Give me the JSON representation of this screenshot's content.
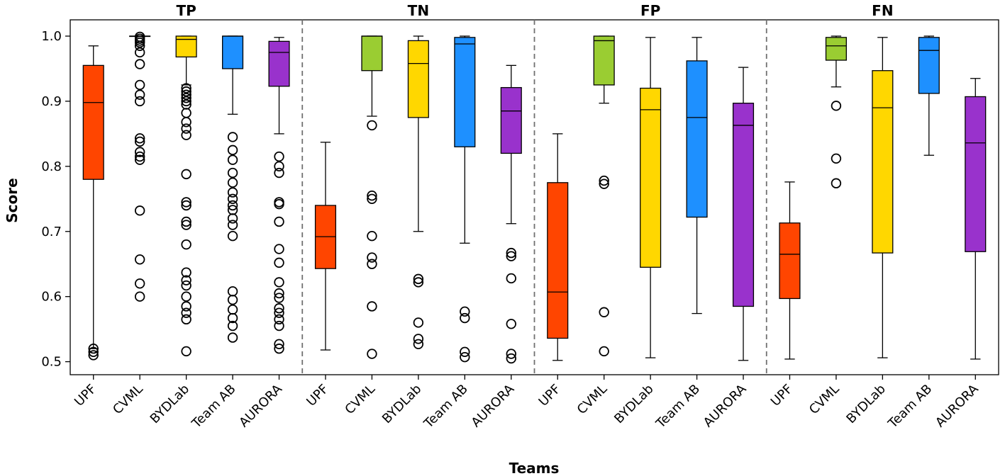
{
  "chart_data": {
    "type": "boxplot",
    "xlabel": "Teams",
    "ylabel": "Score",
    "ylim": [
      0.48,
      1.025
    ],
    "yticks": [
      "0.5",
      "0.6",
      "0.7",
      "0.8",
      "0.9",
      "1.0"
    ],
    "categories": [
      "UPF",
      "CVML",
      "BYDLab",
      "Team AB",
      "AURORA"
    ],
    "team_colors": [
      "#FF4500",
      "#9ACD32",
      "#FFD700",
      "#1E90FF",
      "#9932CC"
    ],
    "panels": [
      {
        "title": "TP",
        "boxes": [
          {
            "team": "UPF",
            "whisker_low": 0.52,
            "q1": 0.78,
            "median": 0.898,
            "q3": 0.955,
            "whisker_high": 0.985,
            "outliers": [
              0.51,
              0.515,
              0.52
            ]
          },
          {
            "team": "CVML",
            "whisker_low": 1.0,
            "q1": 1.0,
            "median": 1.0,
            "q3": 1.0,
            "whisker_high": 1.0,
            "outliers": [
              0.6,
              0.62,
              0.657,
              0.732,
              0.81,
              0.815,
              0.822,
              0.838,
              0.843,
              0.9,
              0.91,
              0.925,
              0.957,
              0.975,
              0.985,
              0.99,
              0.993,
              0.996,
              0.999
            ]
          },
          {
            "team": "BYDLab",
            "whisker_low": 0.925,
            "q1": 0.968,
            "median": 0.995,
            "q3": 1.0,
            "whisker_high": 1.0,
            "outliers": [
              0.516,
              0.565,
              0.575,
              0.585,
              0.6,
              0.617,
              0.625,
              0.637,
              0.68,
              0.71,
              0.715,
              0.74,
              0.745,
              0.788,
              0.848,
              0.858,
              0.868,
              0.882,
              0.895,
              0.9,
              0.905,
              0.91,
              0.915,
              0.92
            ]
          },
          {
            "team": "Team AB",
            "whisker_low": 0.88,
            "q1": 0.95,
            "median": 1.0,
            "q3": 1.0,
            "whisker_high": 1.0,
            "outliers": [
              0.537,
              0.555,
              0.567,
              0.58,
              0.595,
              0.608,
              0.693,
              0.71,
              0.72,
              0.733,
              0.74,
              0.75,
              0.76,
              0.775,
              0.79,
              0.81,
              0.825,
              0.845
            ]
          },
          {
            "team": "AURORA",
            "whisker_low": 0.85,
            "q1": 0.923,
            "median": 0.975,
            "q3": 0.992,
            "whisker_high": 0.998,
            "outliers": [
              0.52,
              0.527,
              0.555,
              0.565,
              0.575,
              0.582,
              0.598,
              0.605,
              0.622,
              0.652,
              0.673,
              0.715,
              0.742,
              0.745,
              0.79,
              0.8,
              0.815
            ]
          }
        ]
      },
      {
        "title": "TN",
        "boxes": [
          {
            "team": "UPF",
            "whisker_low": 0.518,
            "q1": 0.643,
            "median": 0.692,
            "q3": 0.74,
            "whisker_high": 0.837,
            "outliers": []
          },
          {
            "team": "CVML",
            "whisker_low": 0.877,
            "q1": 0.947,
            "median": 1.0,
            "q3": 1.0,
            "whisker_high": 1.0,
            "outliers": [
              0.512,
              0.585,
              0.65,
              0.66,
              0.693,
              0.75,
              0.755,
              0.863
            ]
          },
          {
            "team": "BYDLab",
            "whisker_low": 0.7,
            "q1": 0.875,
            "median": 0.958,
            "q3": 0.993,
            "whisker_high": 1.0,
            "outliers": [
              0.527,
              0.535,
              0.56,
              0.622,
              0.627
            ]
          },
          {
            "team": "Team AB",
            "whisker_low": 0.682,
            "q1": 0.83,
            "median": 0.988,
            "q3": 0.998,
            "whisker_high": 1.0,
            "outliers": [
              0.507,
              0.515,
              0.567,
              0.577
            ]
          },
          {
            "team": "AURORA",
            "whisker_low": 0.712,
            "q1": 0.82,
            "median": 0.885,
            "q3": 0.921,
            "whisker_high": 0.955,
            "outliers": [
              0.505,
              0.512,
              0.558,
              0.628,
              0.662,
              0.667
            ]
          }
        ]
      },
      {
        "title": "FP",
        "boxes": [
          {
            "team": "UPF",
            "whisker_low": 0.502,
            "q1": 0.536,
            "median": 0.607,
            "q3": 0.775,
            "whisker_high": 0.85,
            "outliers": []
          },
          {
            "team": "CVML",
            "whisker_low": 0.897,
            "q1": 0.925,
            "median": 0.993,
            "q3": 1.0,
            "whisker_high": 1.0,
            "outliers": [
              0.516,
              0.576,
              0.773,
              0.778
            ]
          },
          {
            "team": "BYDLab",
            "whisker_low": 0.506,
            "q1": 0.645,
            "median": 0.887,
            "q3": 0.92,
            "whisker_high": 0.998,
            "outliers": []
          },
          {
            "team": "Team AB",
            "whisker_low": 0.574,
            "q1": 0.722,
            "median": 0.875,
            "q3": 0.962,
            "whisker_high": 0.998,
            "outliers": []
          },
          {
            "team": "AURORA",
            "whisker_low": 0.502,
            "q1": 0.585,
            "median": 0.863,
            "q3": 0.897,
            "whisker_high": 0.952,
            "outliers": []
          }
        ]
      },
      {
        "title": "FN",
        "boxes": [
          {
            "team": "UPF",
            "whisker_low": 0.504,
            "q1": 0.597,
            "median": 0.665,
            "q3": 0.713,
            "whisker_high": 0.776,
            "outliers": []
          },
          {
            "team": "CVML",
            "whisker_low": 0.922,
            "q1": 0.963,
            "median": 0.985,
            "q3": 0.998,
            "whisker_high": 1.0,
            "outliers": [
              0.774,
              0.812,
              0.893
            ]
          },
          {
            "team": "BYDLab",
            "whisker_low": 0.506,
            "q1": 0.667,
            "median": 0.89,
            "q3": 0.947,
            "whisker_high": 0.998,
            "outliers": []
          },
          {
            "team": "Team AB",
            "whisker_low": 0.817,
            "q1": 0.912,
            "median": 0.978,
            "q3": 0.998,
            "whisker_high": 1.0,
            "outliers": []
          },
          {
            "team": "AURORA",
            "whisker_low": 0.504,
            "q1": 0.669,
            "median": 0.836,
            "q3": 0.907,
            "whisker_high": 0.935,
            "outliers": []
          }
        ]
      }
    ]
  }
}
